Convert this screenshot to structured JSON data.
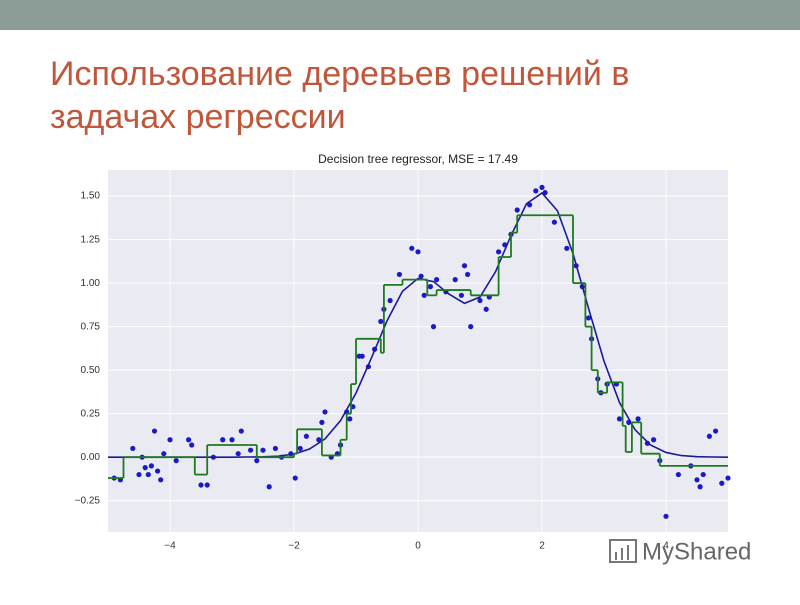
{
  "header": {
    "title_lines": [
      "Использование деревьев решений в",
      "задачах регрессии"
    ]
  },
  "watermark": "MyShared",
  "chart_data": {
    "type": "scatter",
    "title": "Decision tree regressor, MSE = 17.49",
    "xlim": [
      -5,
      5
    ],
    "ylim": [
      -0.43,
      1.65
    ],
    "xticks": [
      {
        "value": -4,
        "label": "−4"
      },
      {
        "value": -2,
        "label": "−2"
      },
      0,
      2,
      4
    ],
    "yticks": [
      {
        "value": -0.25,
        "label": "−0.25"
      },
      {
        "value": 0,
        "label": "0.00"
      },
      0.25,
      {
        "value": 0.5,
        "label": "0.50"
      },
      0.75,
      {
        "value": 1,
        "label": "1.00"
      },
      1.25,
      {
        "value": 1.5,
        "label": "1.50"
      }
    ],
    "grid": true,
    "series": [
      {
        "type": "scatter",
        "color": "#1a1ac8",
        "x": [
          -4.9,
          -4.8,
          -4.6,
          -4.5,
          -4.45,
          -4.4,
          -4.35,
          -4.3,
          -4.25,
          -4.2,
          -4.15,
          -4.1,
          -4.0,
          -3.9,
          -3.7,
          -3.65,
          -3.5,
          -3.4,
          -3.3,
          -3.15,
          -3.0,
          -2.9,
          -2.85,
          -2.7,
          -2.6,
          -2.5,
          -2.4,
          -2.3,
          -2.2,
          -2.05,
          -1.98,
          -1.9,
          -1.8,
          -1.6,
          -1.55,
          -1.5,
          -1.4,
          -1.3,
          -1.25,
          -1.15,
          -1.1,
          -1.05,
          -0.95,
          -0.9,
          -0.8,
          -0.7,
          -0.6,
          -0.55,
          -0.45,
          -0.3,
          -0.1,
          0.0,
          0.05,
          0.1,
          0.2,
          0.25,
          0.3,
          0.45,
          0.6,
          0.7,
          0.75,
          0.8,
          0.85,
          1.0,
          1.1,
          1.15,
          1.3,
          1.4,
          1.5,
          1.6,
          1.8,
          1.9,
          2.0,
          2.05,
          2.2,
          2.4,
          2.55,
          2.65,
          2.75,
          2.8,
          2.9,
          2.95,
          3.05,
          3.2,
          3.25,
          3.4,
          3.55,
          3.7,
          3.8,
          3.9,
          4.0,
          4.2,
          4.4,
          4.5,
          4.55,
          4.6,
          4.7,
          4.8,
          4.9,
          5.0
        ],
        "values": [
          -0.12,
          -0.13,
          0.05,
          -0.1,
          0.0,
          -0.06,
          -0.1,
          -0.05,
          0.15,
          -0.08,
          -0.13,
          0.02,
          0.1,
          -0.02,
          0.1,
          0.07,
          -0.16,
          -0.16,
          0.0,
          0.1,
          0.1,
          0.02,
          0.15,
          0.04,
          -0.02,
          0.04,
          -0.17,
          0.05,
          0.0,
          0.02,
          -0.12,
          0.05,
          0.12,
          0.1,
          0.2,
          0.26,
          0.0,
          0.02,
          0.07,
          0.26,
          0.22,
          0.29,
          0.58,
          0.58,
          0.52,
          0.62,
          0.78,
          0.85,
          0.9,
          1.05,
          1.2,
          1.18,
          1.04,
          0.93,
          0.98,
          0.75,
          1.02,
          0.95,
          1.02,
          0.93,
          1.1,
          1.05,
          0.75,
          0.9,
          0.85,
          0.92,
          1.18,
          1.22,
          1.28,
          1.42,
          1.45,
          1.53,
          1.55,
          1.52,
          1.35,
          1.2,
          1.1,
          0.98,
          0.8,
          0.68,
          0.45,
          0.37,
          0.42,
          0.42,
          0.22,
          0.2,
          0.22,
          0.08,
          0.1,
          -0.02,
          -0.34,
          -0.1,
          -0.05,
          -0.13,
          -0.17,
          -0.1,
          0.12,
          0.15,
          -0.15,
          -0.12
        ]
      },
      {
        "type": "line",
        "color": "#1a1a9a",
        "x": [
          -5,
          -4.75,
          -4.5,
          -4.25,
          -4,
          -3.75,
          -3.5,
          -3.25,
          -3,
          -2.75,
          -2.5,
          -2.25,
          -2,
          -1.75,
          -1.5,
          -1.25,
          -1,
          -0.75,
          -0.5,
          -0.25,
          0,
          0.25,
          0.5,
          0.75,
          1,
          1.25,
          1.5,
          1.75,
          2,
          2.25,
          2.5,
          2.75,
          3,
          3.25,
          3.5,
          3.75,
          4,
          4.25,
          4.5,
          4.75,
          5
        ],
        "values": [
          0,
          0,
          0,
          0,
          0,
          0,
          0,
          0,
          0,
          0.001,
          0.002,
          0.006,
          0.018,
          0.047,
          0.105,
          0.21,
          0.368,
          0.571,
          0.783,
          0.953,
          1.027,
          1.009,
          0.937,
          0.884,
          0.92,
          1.065,
          1.273,
          1.456,
          1.518,
          1.415,
          1.17,
          0.856,
          0.552,
          0.314,
          0.158,
          0.07,
          0.027,
          0.009,
          0.003,
          0.001,
          0
        ]
      },
      {
        "type": "step",
        "color": "#1e7a1e",
        "x": [
          -5,
          -4.75,
          -3.6,
          -3.4,
          -2.6,
          -2.0,
          -1.95,
          -1.55,
          -1.25,
          -1.15,
          -1.08,
          -1.0,
          -0.6,
          -0.55,
          -0.25,
          0.15,
          0.3,
          0.85,
          1.3,
          1.5,
          1.6,
          2.5,
          2.7,
          2.8,
          2.9,
          3.05,
          3.3,
          3.35,
          3.45,
          3.6,
          3.9
        ],
        "values": [
          -0.12,
          0.0,
          -0.1,
          0.07,
          0.0,
          0.02,
          0.16,
          0.01,
          0.1,
          0.25,
          0.42,
          0.68,
          0.6,
          0.99,
          1.02,
          0.93,
          0.96,
          0.93,
          1.15,
          1.29,
          1.39,
          1.0,
          0.75,
          0.5,
          0.37,
          0.43,
          0.18,
          0.03,
          0.2,
          0.02,
          -0.05
        ]
      }
    ]
  }
}
